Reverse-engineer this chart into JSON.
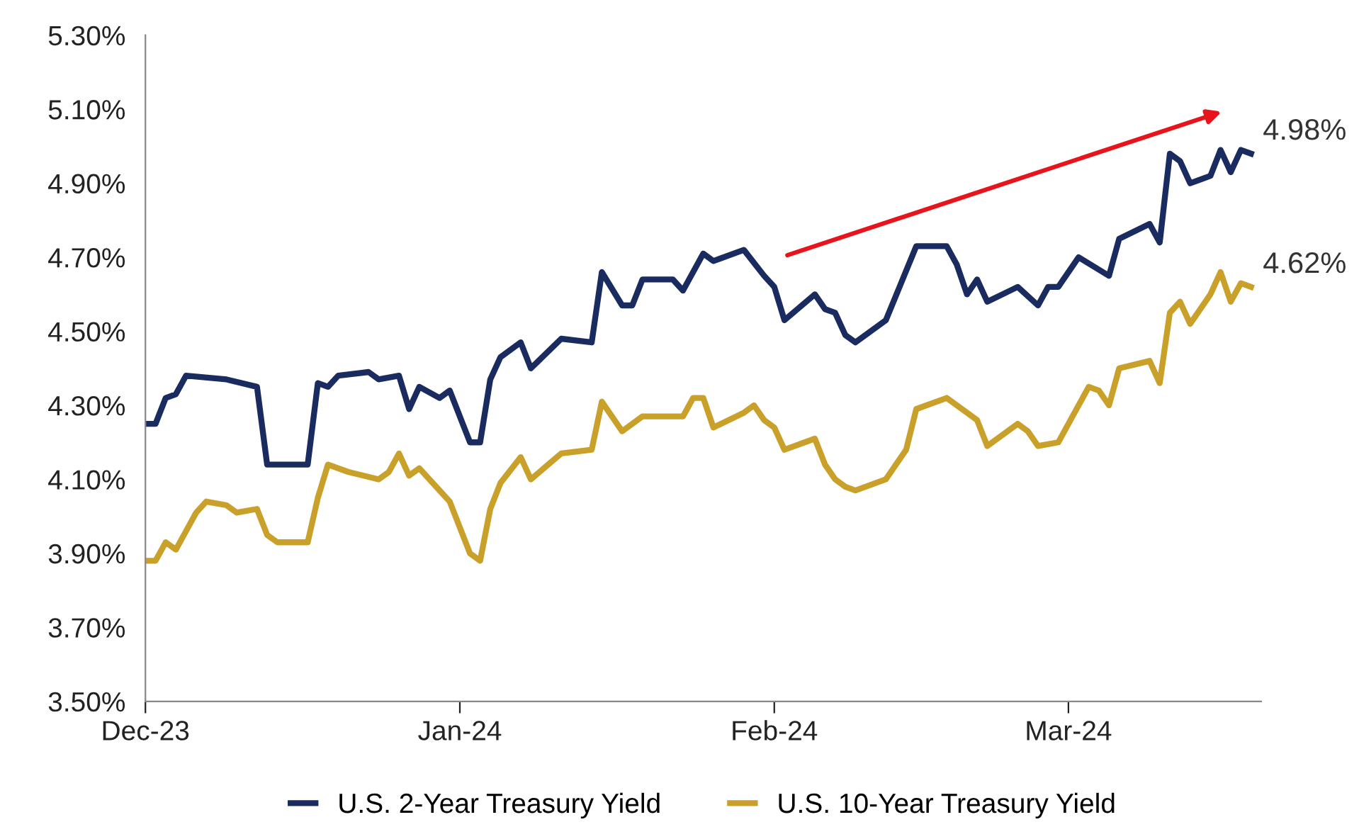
{
  "chart_data": {
    "type": "line",
    "series": [
      {
        "name": "U.S. 2-Year Treasury Yield",
        "color": "#1a2b5f",
        "x": [
          "2023-12-01",
          "2023-12-02",
          "2023-12-03",
          "2023-12-04",
          "2023-12-05",
          "2023-12-09",
          "2023-12-12",
          "2023-12-13",
          "2023-12-17",
          "2023-12-18",
          "2023-12-19",
          "2023-12-20",
          "2023-12-23",
          "2023-12-24",
          "2023-12-26",
          "2023-12-27",
          "2023-12-28",
          "2023-12-30",
          "2023-12-31",
          "2024-01-02",
          "2024-01-03",
          "2024-01-04",
          "2024-01-05",
          "2024-01-07",
          "2024-01-08",
          "2024-01-11",
          "2024-01-14",
          "2024-01-15",
          "2024-01-17",
          "2024-01-18",
          "2024-01-19",
          "2024-01-22",
          "2024-01-23",
          "2024-01-25",
          "2024-01-26",
          "2024-01-29",
          "2024-01-31",
          "2024-02-01",
          "2024-02-02",
          "2024-02-05",
          "2024-02-06",
          "2024-02-07",
          "2024-02-08",
          "2024-02-09",
          "2024-02-12",
          "2024-02-15",
          "2024-02-18",
          "2024-02-19",
          "2024-02-20",
          "2024-02-21",
          "2024-02-22",
          "2024-02-25",
          "2024-02-27",
          "2024-02-28",
          "2024-02-29",
          "2024-03-02",
          "2024-03-05",
          "2024-03-06",
          "2024-03-09",
          "2024-03-10",
          "2024-03-11",
          "2024-03-12",
          "2024-03-13",
          "2024-03-15",
          "2024-03-16",
          "2024-03-17",
          "2024-03-18",
          "2024-03-19"
        ],
        "values": [
          4.25,
          4.25,
          4.32,
          4.33,
          4.38,
          4.37,
          4.35,
          4.14,
          4.14,
          4.36,
          4.35,
          4.38,
          4.39,
          4.37,
          4.38,
          4.29,
          4.35,
          4.32,
          4.34,
          4.2,
          4.2,
          4.37,
          4.43,
          4.47,
          4.4,
          4.48,
          4.47,
          4.66,
          4.57,
          4.57,
          4.64,
          4.64,
          4.61,
          4.71,
          4.69,
          4.72,
          4.65,
          4.62,
          4.53,
          4.6,
          4.56,
          4.55,
          4.49,
          4.47,
          4.53,
          4.73,
          4.73,
          4.68,
          4.6,
          4.64,
          4.58,
          4.62,
          4.57,
          4.62,
          4.62,
          4.7,
          4.65,
          4.75,
          4.79,
          4.74,
          4.98,
          4.96,
          4.9,
          4.92,
          4.99,
          4.93,
          4.99,
          4.98
        ],
        "value_labels": [
          null,
          null,
          null,
          null,
          null,
          null,
          null,
          null,
          null,
          null,
          null,
          null,
          null,
          null,
          null,
          null,
          null,
          null,
          null,
          null,
          null,
          null,
          null,
          null,
          null,
          null,
          null,
          null,
          null,
          null,
          null,
          null,
          null,
          null,
          null,
          null,
          null,
          null,
          null,
          null,
          null,
          null,
          null,
          null,
          null,
          null,
          null,
          null,
          null,
          null,
          null,
          null,
          null,
          null,
          null,
          null,
          null,
          null,
          null,
          null,
          null,
          null,
          null,
          null,
          null,
          null,
          null,
          "4.98%"
        ]
      },
      {
        "name": "U.S. 10-Year Treasury Yield",
        "color": "#c9a02a",
        "x": [
          "2023-12-01",
          "2023-12-02",
          "2023-12-03",
          "2023-12-04",
          "2023-12-06",
          "2023-12-07",
          "2023-12-09",
          "2023-12-10",
          "2023-12-12",
          "2023-12-13",
          "2023-12-14",
          "2023-12-17",
          "2023-12-18",
          "2023-12-19",
          "2023-12-21",
          "2023-12-24",
          "2023-12-25",
          "2023-12-26",
          "2023-12-27",
          "2023-12-28",
          "2023-12-30",
          "2023-12-31",
          "2024-01-02",
          "2024-01-03",
          "2024-01-04",
          "2024-01-05",
          "2024-01-07",
          "2024-01-08",
          "2024-01-11",
          "2024-01-14",
          "2024-01-15",
          "2024-01-17",
          "2024-01-19",
          "2024-01-23",
          "2024-01-24",
          "2024-01-25",
          "2024-01-26",
          "2024-01-29",
          "2024-01-30",
          "2024-01-31",
          "2024-02-01",
          "2024-02-02",
          "2024-02-05",
          "2024-02-06",
          "2024-02-07",
          "2024-02-08",
          "2024-02-09",
          "2024-02-12",
          "2024-02-14",
          "2024-02-15",
          "2024-02-18",
          "2024-02-20",
          "2024-02-21",
          "2024-02-22",
          "2024-02-25",
          "2024-02-26",
          "2024-02-27",
          "2024-02-29",
          "2024-03-03",
          "2024-03-04",
          "2024-03-05",
          "2024-03-06",
          "2024-03-09",
          "2024-03-10",
          "2024-03-11",
          "2024-03-12",
          "2024-03-13",
          "2024-03-15",
          "2024-03-16",
          "2024-03-17",
          "2024-03-18",
          "2024-03-19"
        ],
        "values": [
          3.88,
          3.88,
          3.93,
          3.91,
          4.01,
          4.04,
          4.03,
          4.01,
          4.02,
          3.95,
          3.93,
          3.93,
          4.05,
          4.14,
          4.12,
          4.1,
          4.12,
          4.17,
          4.11,
          4.13,
          4.07,
          4.04,
          3.9,
          3.88,
          4.02,
          4.09,
          4.16,
          4.1,
          4.17,
          4.18,
          4.31,
          4.23,
          4.27,
          4.27,
          4.32,
          4.32,
          4.24,
          4.28,
          4.3,
          4.26,
          4.24,
          4.18,
          4.21,
          4.14,
          4.1,
          4.08,
          4.07,
          4.1,
          4.18,
          4.29,
          4.32,
          4.28,
          4.26,
          4.19,
          4.25,
          4.23,
          4.19,
          4.2,
          4.35,
          4.34,
          4.3,
          4.4,
          4.42,
          4.36,
          4.55,
          4.58,
          4.52,
          4.6,
          4.66,
          4.58,
          4.63,
          4.62
        ],
        "value_labels": [
          null,
          null,
          null,
          null,
          null,
          null,
          null,
          null,
          null,
          null,
          null,
          null,
          null,
          null,
          null,
          null,
          null,
          null,
          null,
          null,
          null,
          null,
          null,
          null,
          null,
          null,
          null,
          null,
          null,
          null,
          null,
          null,
          null,
          null,
          null,
          null,
          null,
          null,
          null,
          null,
          null,
          null,
          null,
          null,
          null,
          null,
          null,
          null,
          null,
          null,
          null,
          null,
          null,
          null,
          null,
          null,
          null,
          null,
          null,
          null,
          null,
          null,
          null,
          null,
          null,
          null,
          null,
          null,
          null,
          null,
          null,
          "4.62%"
        ]
      }
    ],
    "xlim": [
      "2023-12-01",
      "2024-03-20"
    ],
    "xticks": [
      {
        "value": "2023-12-01",
        "label": "Dec-23"
      },
      {
        "value": "2024-01-01",
        "label": "Jan-24"
      },
      {
        "value": "2024-02-01",
        "label": "Feb-24"
      },
      {
        "value": "2024-03-01",
        "label": "Mar-24"
      }
    ],
    "ylim": [
      3.5,
      5.3
    ],
    "yticks": [
      {
        "value": 3.5,
        "label": "3.50%"
      },
      {
        "value": 3.7,
        "label": "3.70%"
      },
      {
        "value": 3.9,
        "label": "3.90%"
      },
      {
        "value": 4.1,
        "label": "4.10%"
      },
      {
        "value": 4.3,
        "label": "4.30%"
      },
      {
        "value": 4.5,
        "label": "4.50%"
      },
      {
        "value": 4.7,
        "label": "4.70%"
      },
      {
        "value": 4.9,
        "label": "4.90%"
      },
      {
        "value": 5.1,
        "label": "5.10%"
      },
      {
        "value": 5.3,
        "label": "5.30%"
      }
    ],
    "grid": false,
    "legend": "bottom",
    "marker": "none",
    "line_style": "solid"
  }
}
